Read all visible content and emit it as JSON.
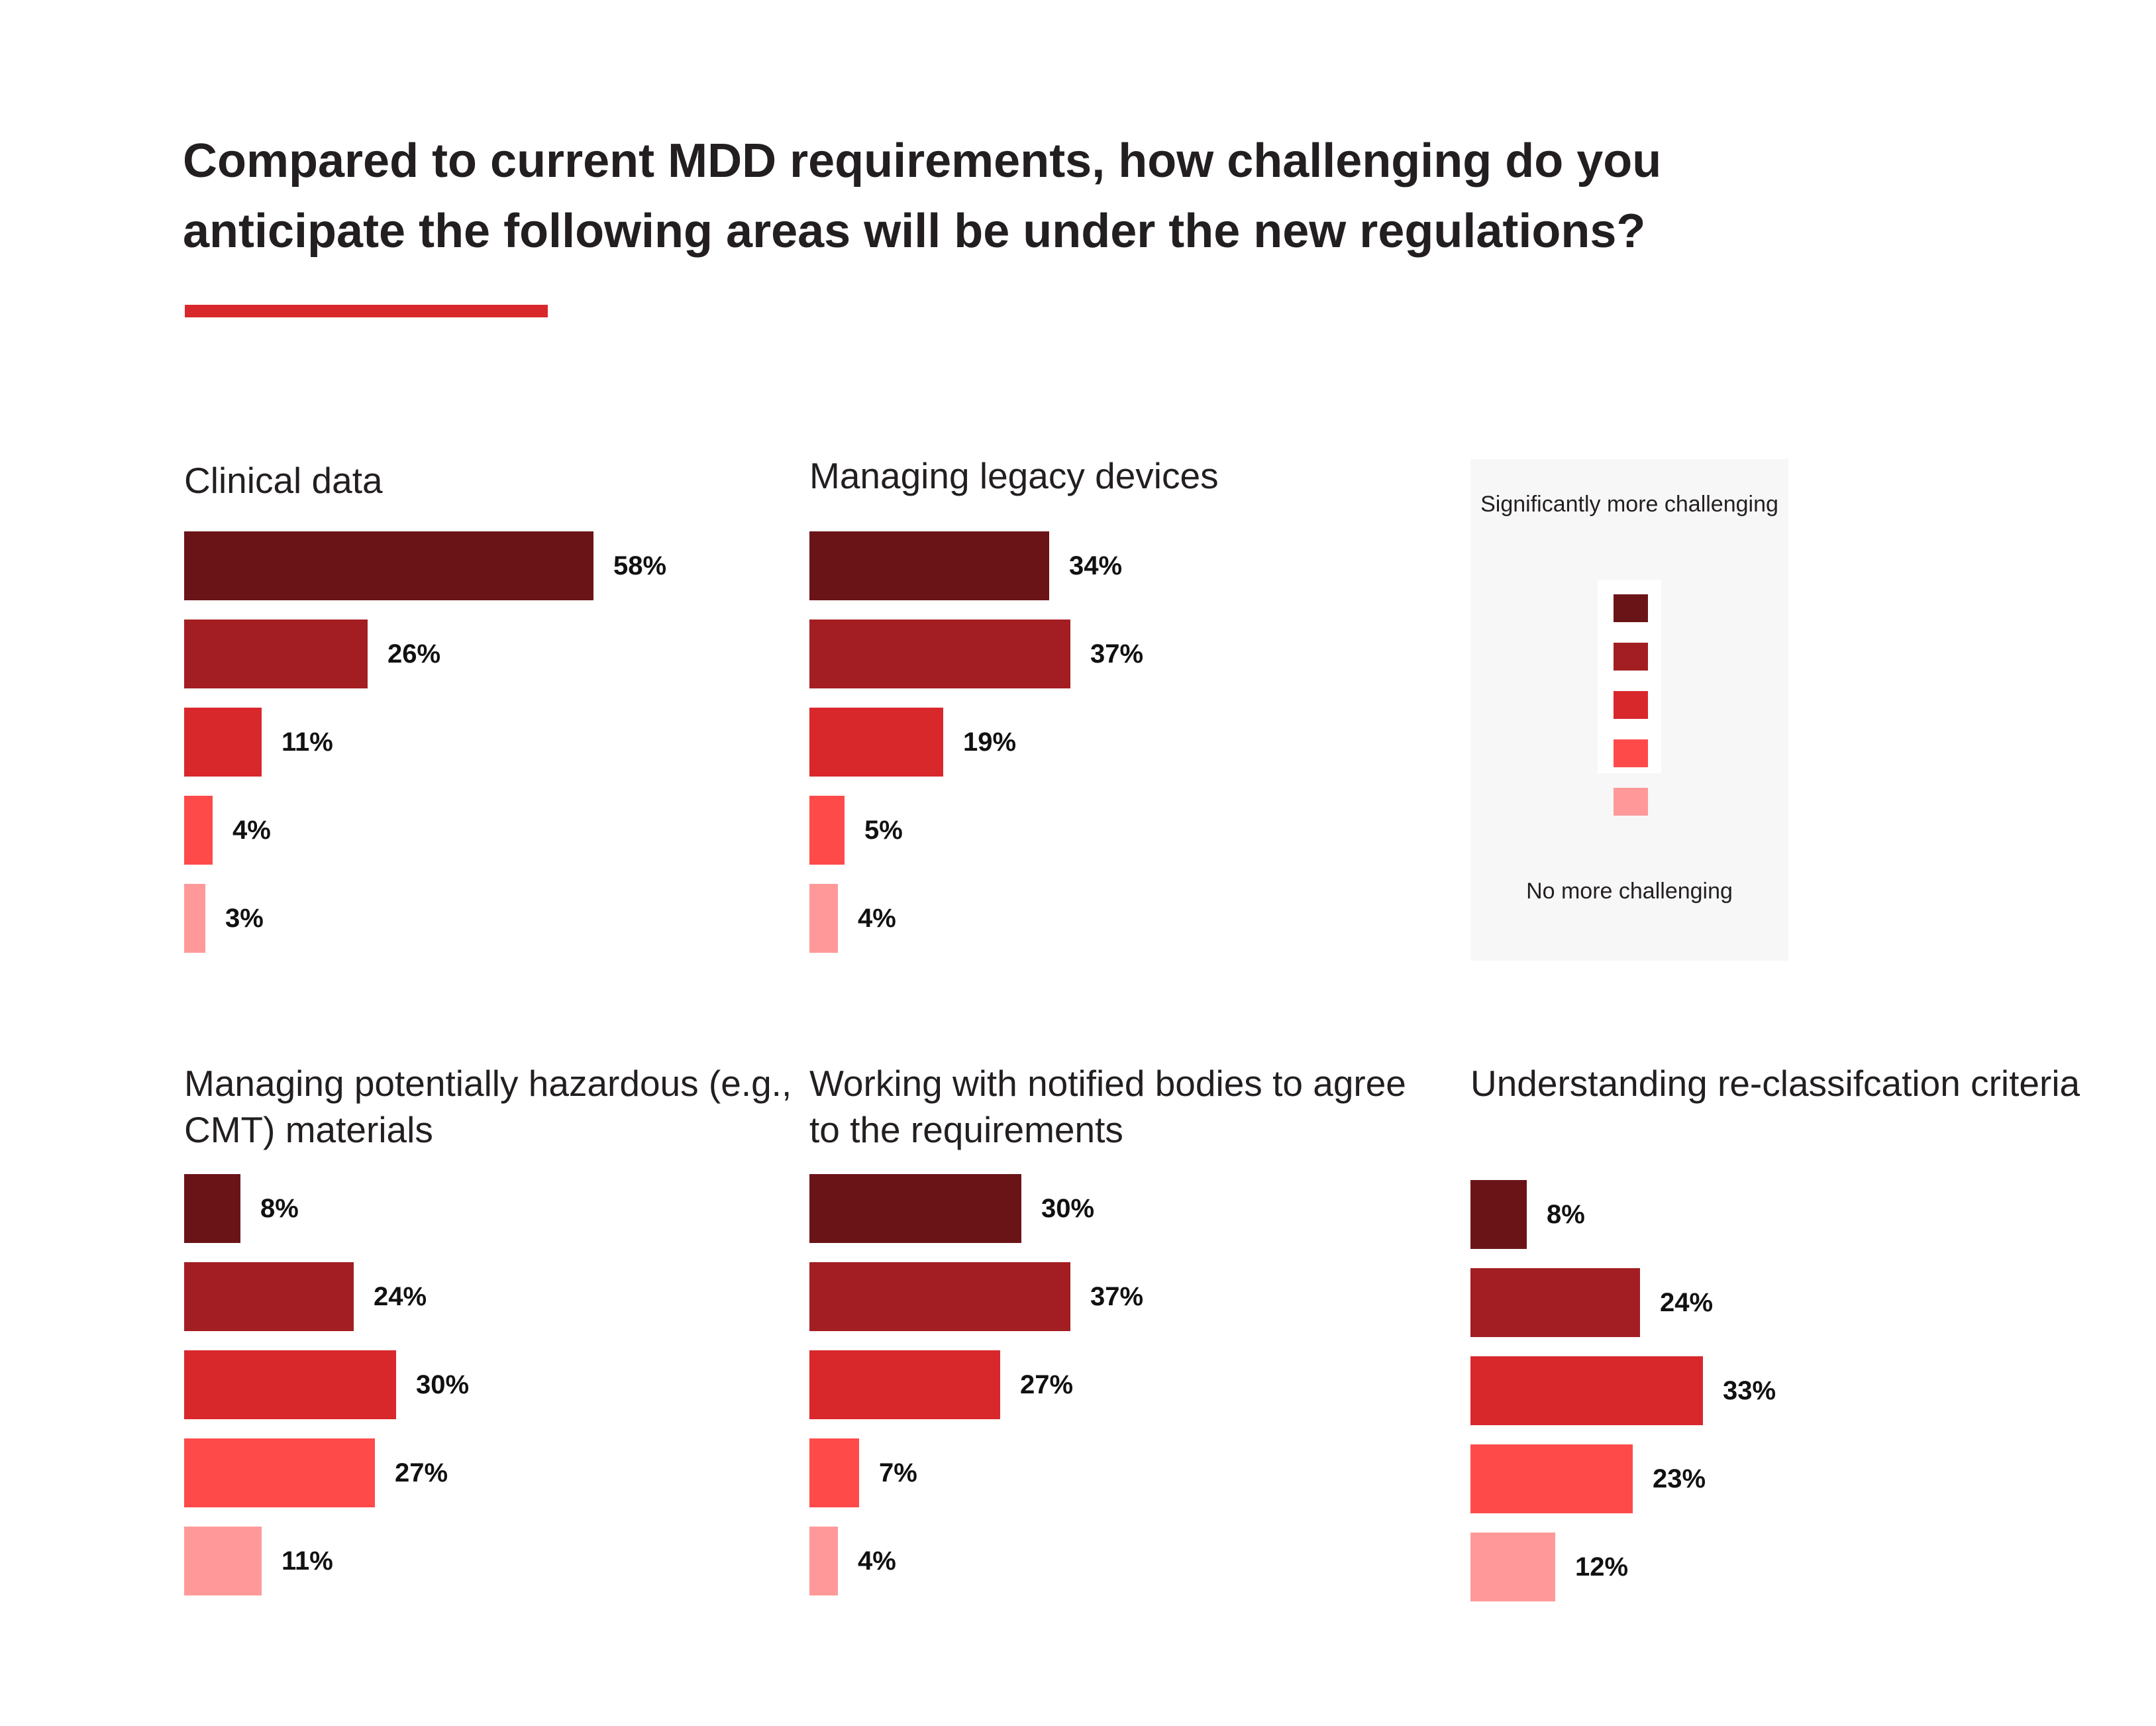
{
  "title": "Compared to current MDD requirements, how challenging do you anticipate the following areas will be under the new regulations?",
  "accent_color": "#d8282c",
  "legend": {
    "top_label": "Significantly more challenging",
    "bottom_label": "No more challenging",
    "colors": [
      "#6b1418",
      "#a31e22",
      "#d8282c",
      "#ff4a4a",
      "#ff9999"
    ]
  },
  "chart_data": [
    {
      "type": "bar",
      "orientation": "horizontal",
      "title": "Clinical data",
      "categories": [
        "Significantly more challenging",
        "",
        "",
        "",
        "No more challenging"
      ],
      "values": [
        58,
        26,
        11,
        4,
        3
      ],
      "labels": [
        "58%",
        "26%",
        "11%",
        "4%",
        "3%"
      ],
      "unit": "%"
    },
    {
      "type": "bar",
      "orientation": "horizontal",
      "title": "Managing legacy devices",
      "categories": [
        "Significantly more challenging",
        "",
        "",
        "",
        "No more challenging"
      ],
      "values": [
        34,
        37,
        19,
        5,
        4
      ],
      "labels": [
        "34%",
        "37%",
        "19%",
        "5%",
        "4%"
      ],
      "unit": "%"
    },
    {
      "type": "bar",
      "orientation": "horizontal",
      "title": "Managing potentially hazardous (e.g., CMT) materials",
      "categories": [
        "Significantly more challenging",
        "",
        "",
        "",
        "No more challenging"
      ],
      "values": [
        8,
        24,
        30,
        27,
        11
      ],
      "labels": [
        "8%",
        "24%",
        "30%",
        "27%",
        "11%"
      ],
      "unit": "%"
    },
    {
      "type": "bar",
      "orientation": "horizontal",
      "title": "Working with notified bodies to agree to the requirements",
      "categories": [
        "Significantly more challenging",
        "",
        "",
        "",
        "No more challenging"
      ],
      "values": [
        30,
        37,
        27,
        7,
        4
      ],
      "labels": [
        "30%",
        "37%",
        "27%",
        "7%",
        "4%"
      ],
      "unit": "%"
    },
    {
      "type": "bar",
      "orientation": "horizontal",
      "title": "Understanding re-classifcation criteria",
      "categories": [
        "Significantly more challenging",
        "",
        "",
        "",
        "No more challenging"
      ],
      "values": [
        8,
        24,
        33,
        23,
        12
      ],
      "labels": [
        "8%",
        "24%",
        "33%",
        "23%",
        "12%"
      ],
      "unit": "%"
    }
  ]
}
